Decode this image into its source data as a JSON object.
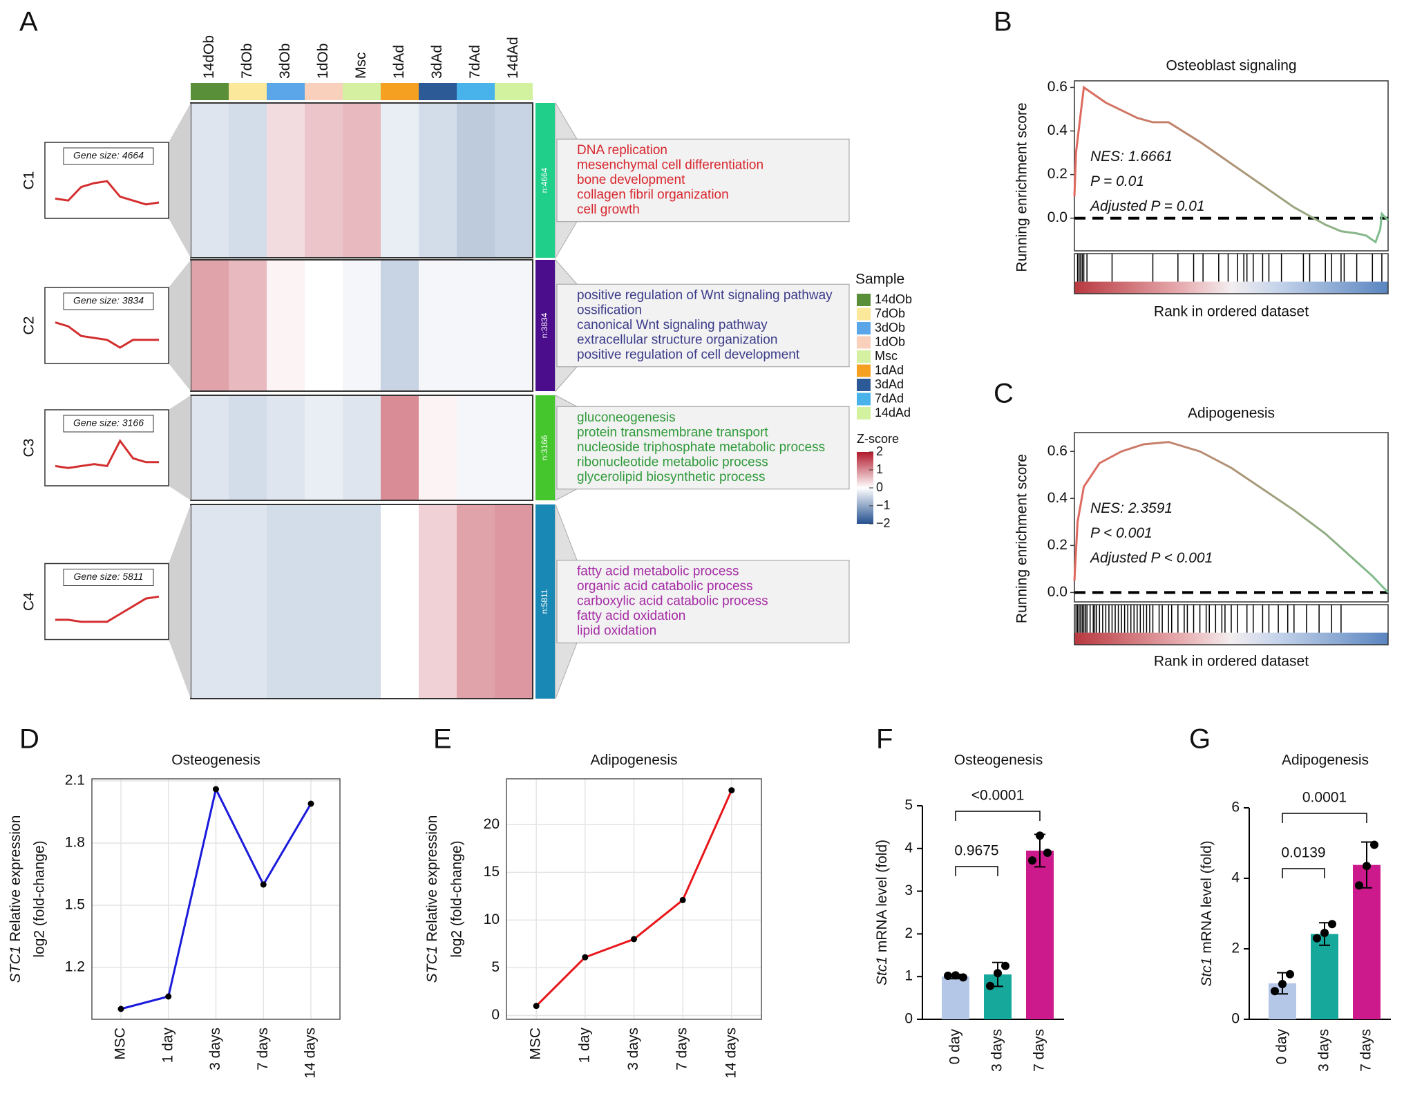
{
  "panels": [
    "A",
    "B",
    "C",
    "D",
    "E",
    "F",
    "G"
  ],
  "chart_data": [
    {
      "type": "heatmap",
      "samples": [
        "14dOb",
        "7dOb",
        "3dOb",
        "1dOb",
        "Msc",
        "1dAd",
        "3dAd",
        "7dAd",
        "14dAd"
      ],
      "sample_colors": [
        "#5a8f3a",
        "#fbe89a",
        "#5aa6e8",
        "#f8d0bb",
        "#d4f0a0",
        "#f5a020",
        "#2c5a96",
        "#48b2ea",
        "#d2f2a0"
      ],
      "legend_title": "Sample",
      "colorbar_title": "Z-score",
      "zlim": [
        -2,
        2
      ],
      "zticks": [
        2,
        1,
        0,
        {
          "value": -1,
          "label": "−1"
        },
        {
          "value": -2,
          "label": "−2"
        }
      ],
      "colors": [
        "#24508f",
        "#ffffff",
        "#b2182b"
      ],
      "clusters": [
        {
          "name": "C1",
          "gene_size": "Gene size: 4664",
          "n": "n:4664",
          "color": "#1fcf8a",
          "term_color": "#d7262e",
          "terms": [
            "DNA replication",
            "mesenchymal cell differentiation",
            "bone development",
            "collagen fibril organization",
            "cell growth"
          ],
          "values": [
            -0.3,
            -0.4,
            0.3,
            0.5,
            0.6,
            -0.2,
            -0.4,
            -0.6,
            -0.5
          ]
        },
        {
          "name": "C2",
          "gene_size": "Gene size: 3834",
          "n": "n:3834",
          "color": "#4b0d8c",
          "term_color": "#3b3b8a",
          "terms": [
            "positive regulation of Wnt signaling pathway",
            "ossification",
            "canonical Wnt signaling pathway",
            "extracellular structure organization",
            "positive regulation of cell development"
          ],
          "values": [
            0.8,
            0.6,
            0.1,
            0.0,
            -0.1,
            -0.5,
            -0.1,
            -0.1,
            -0.1
          ]
        },
        {
          "name": "C3",
          "gene_size": "Gene size: 3166",
          "n": "n:3166",
          "color": "#44c62c",
          "term_color": "#2f9a3a",
          "terms": [
            "gluconeogenesis",
            "protein transmembrane transport",
            "nucleoside triphosphate metabolic process",
            "ribonucleotide metabolic process",
            "glycerolipid biosynthetic process"
          ],
          "values": [
            -0.3,
            -0.4,
            -0.3,
            -0.2,
            -0.3,
            1.0,
            0.1,
            -0.1,
            -0.1
          ]
        },
        {
          "name": "C4",
          "gene_size": "Gene size: 5811",
          "n": "n:5811",
          "color": "#1a88b4",
          "term_color": "#a62ca6",
          "terms": [
            "fatty acid metabolic process",
            "organic acid catabolic process",
            "carboxylic acid catabolic process",
            "fatty acid oxidation",
            "lipid oxidation"
          ],
          "values": [
            -0.3,
            -0.3,
            -0.4,
            -0.4,
            -0.4,
            0.0,
            0.4,
            0.8,
            0.9
          ]
        }
      ]
    },
    {
      "type": "gsea",
      "title": "Osteoblast signaling",
      "ylabel": "Running enrichment score",
      "xlabel": "Rank in ordered dataset",
      "xlim": [
        0,
        1
      ],
      "ylim": [
        -0.15,
        0.63
      ],
      "yticks": [
        {
          "value": 0,
          "label": "0.0"
        },
        0.2,
        0.4,
        0.6
      ],
      "x": [
        0,
        0.005,
        0.03,
        0.1,
        0.2,
        0.25,
        0.3,
        0.4,
        0.5,
        0.6,
        0.7,
        0.75,
        0.8,
        0.85,
        0.9,
        0.93,
        0.96,
        0.975,
        0.98,
        1
      ],
      "values": [
        0.1,
        0.3,
        0.6,
        0.53,
        0.46,
        0.44,
        0.44,
        0.35,
        0.25,
        0.15,
        0.05,
        0.01,
        -0.03,
        -0.06,
        -0.07,
        -0.08,
        -0.11,
        -0.05,
        0.02,
        -0.01
      ],
      "hits": [
        0.01,
        0.015,
        0.02,
        0.025,
        0.03,
        0.04,
        0.12,
        0.25,
        0.33,
        0.38,
        0.41,
        0.46,
        0.49,
        0.52,
        0.54,
        0.55,
        0.57,
        0.6,
        0.62,
        0.66,
        0.73,
        0.75,
        0.8,
        0.82,
        0.85,
        0.86,
        0.9,
        0.95,
        0.98
      ],
      "annotations": [
        "NES: 1.6661",
        "P = 0.01",
        "Adjusted P = 0.01"
      ],
      "colors": [
        "#e0685e",
        "#7cbf8e"
      ]
    },
    {
      "type": "gsea",
      "title": "Adipogenesis",
      "ylabel": "Running enrichment score",
      "xlabel": "Rank in ordered dataset",
      "xlim": [
        0,
        1
      ],
      "ylim": [
        -0.04,
        0.68
      ],
      "yticks": [
        {
          "value": 0,
          "label": "0.0"
        },
        0.2,
        0.4,
        0.6
      ],
      "x": [
        0,
        0.01,
        0.03,
        0.08,
        0.15,
        0.22,
        0.3,
        0.4,
        0.5,
        0.6,
        0.7,
        0.8,
        0.9,
        0.95,
        1
      ],
      "values": [
        0.05,
        0.3,
        0.45,
        0.55,
        0.6,
        0.63,
        0.64,
        0.6,
        0.53,
        0.44,
        0.35,
        0.25,
        0.13,
        0.07,
        0.0
      ],
      "hits": [
        0.005,
        0.01,
        0.015,
        0.02,
        0.025,
        0.03,
        0.035,
        0.04,
        0.05,
        0.06,
        0.065,
        0.07,
        0.08,
        0.09,
        0.1,
        0.11,
        0.12,
        0.13,
        0.14,
        0.15,
        0.16,
        0.17,
        0.18,
        0.19,
        0.2,
        0.21,
        0.22,
        0.23,
        0.24,
        0.25,
        0.27,
        0.28,
        0.3,
        0.31,
        0.33,
        0.35,
        0.36,
        0.38,
        0.4,
        0.42,
        0.43,
        0.45,
        0.47,
        0.48,
        0.5,
        0.52,
        0.55,
        0.57,
        0.6,
        0.62,
        0.65,
        0.68,
        0.7,
        0.74,
        0.78,
        0.82,
        0.85
      ],
      "annotations": [
        "NES: 2.3591",
        "P < 0.001",
        "Adjusted P < 0.001"
      ],
      "colors": [
        "#e0685e",
        "#7cbf8e"
      ]
    },
    {
      "type": "line",
      "title": "Osteogenesis",
      "ylabel_gene": "STC1",
      "ylabel": " Relative expression",
      "ylabel2": "log2 (fold-change)",
      "categories": [
        "MSC",
        "1 day",
        "3 days",
        "7 days",
        "14 days"
      ],
      "values": [
        1.0,
        1.06,
        2.06,
        1.6,
        1.99
      ],
      "color": "#1a1adc",
      "ylim": [
        0.95,
        2.11
      ],
      "yticks": [
        1.2,
        1.5,
        1.8,
        2.1
      ],
      "grid": true
    },
    {
      "type": "line",
      "title": "Adipogenesis",
      "ylabel_gene": "STC1",
      "ylabel": " Relative expression",
      "ylabel2": "log2 (fold-change)",
      "categories": [
        "MSC",
        "1 day",
        "3 days",
        "7 days",
        "14 days"
      ],
      "values": [
        1.0,
        6.1,
        8.0,
        12.1,
        23.6
      ],
      "color": "#e8161a",
      "ylim": [
        -0.4,
        24.8
      ],
      "yticks": [
        0,
        5,
        10,
        15,
        20
      ],
      "grid": true
    },
    {
      "type": "bar",
      "title": "Osteogenesis",
      "ylabel_gene": "Stc1",
      "ylabel": " mRNA level (fold)",
      "categories": [
        "0 day",
        "3 days",
        "7 days"
      ],
      "values": [
        1.0,
        1.05,
        3.95
      ],
      "errors": [
        0.05,
        0.28,
        0.38
      ],
      "points": [
        [
          1.02,
          1.03,
          0.98
        ],
        [
          0.78,
          1.08,
          1.25
        ],
        [
          3.72,
          4.3,
          3.9
        ]
      ],
      "colors": [
        "#b4c7e7",
        "#17a89c",
        "#cc1a8c"
      ],
      "ylim": [
        0,
        5
      ],
      "yticks": [
        0,
        1,
        2,
        3,
        4,
        5
      ],
      "comparisons": [
        {
          "groups": [
            "0 day",
            "3 days"
          ],
          "label": "0.9675"
        },
        {
          "groups": [
            "0 day",
            "7 days"
          ],
          "label": "<0.0001"
        }
      ]
    },
    {
      "type": "bar",
      "title": "Adipogenesis",
      "ylabel_gene": "Stc1",
      "ylabel": " mRNA level (fold)",
      "categories": [
        "0 day",
        "3 days",
        "7 days"
      ],
      "values": [
        1.02,
        2.42,
        4.38
      ],
      "errors": [
        0.3,
        0.32,
        0.65
      ],
      "points": [
        [
          0.8,
          1.0,
          1.28
        ],
        [
          2.3,
          2.45,
          2.7
        ],
        [
          3.8,
          4.35,
          4.95
        ]
      ],
      "colors": [
        "#b4c7e7",
        "#17a89c",
        "#cc1a8c"
      ],
      "ylim": [
        0,
        6
      ],
      "yticks": [
        0,
        2,
        4,
        6
      ],
      "comparisons": [
        {
          "groups": [
            "0 day",
            "3 days"
          ],
          "label": "0.0139"
        },
        {
          "groups": [
            "0 day",
            "7 days"
          ],
          "label": "0.0001"
        }
      ]
    }
  ]
}
